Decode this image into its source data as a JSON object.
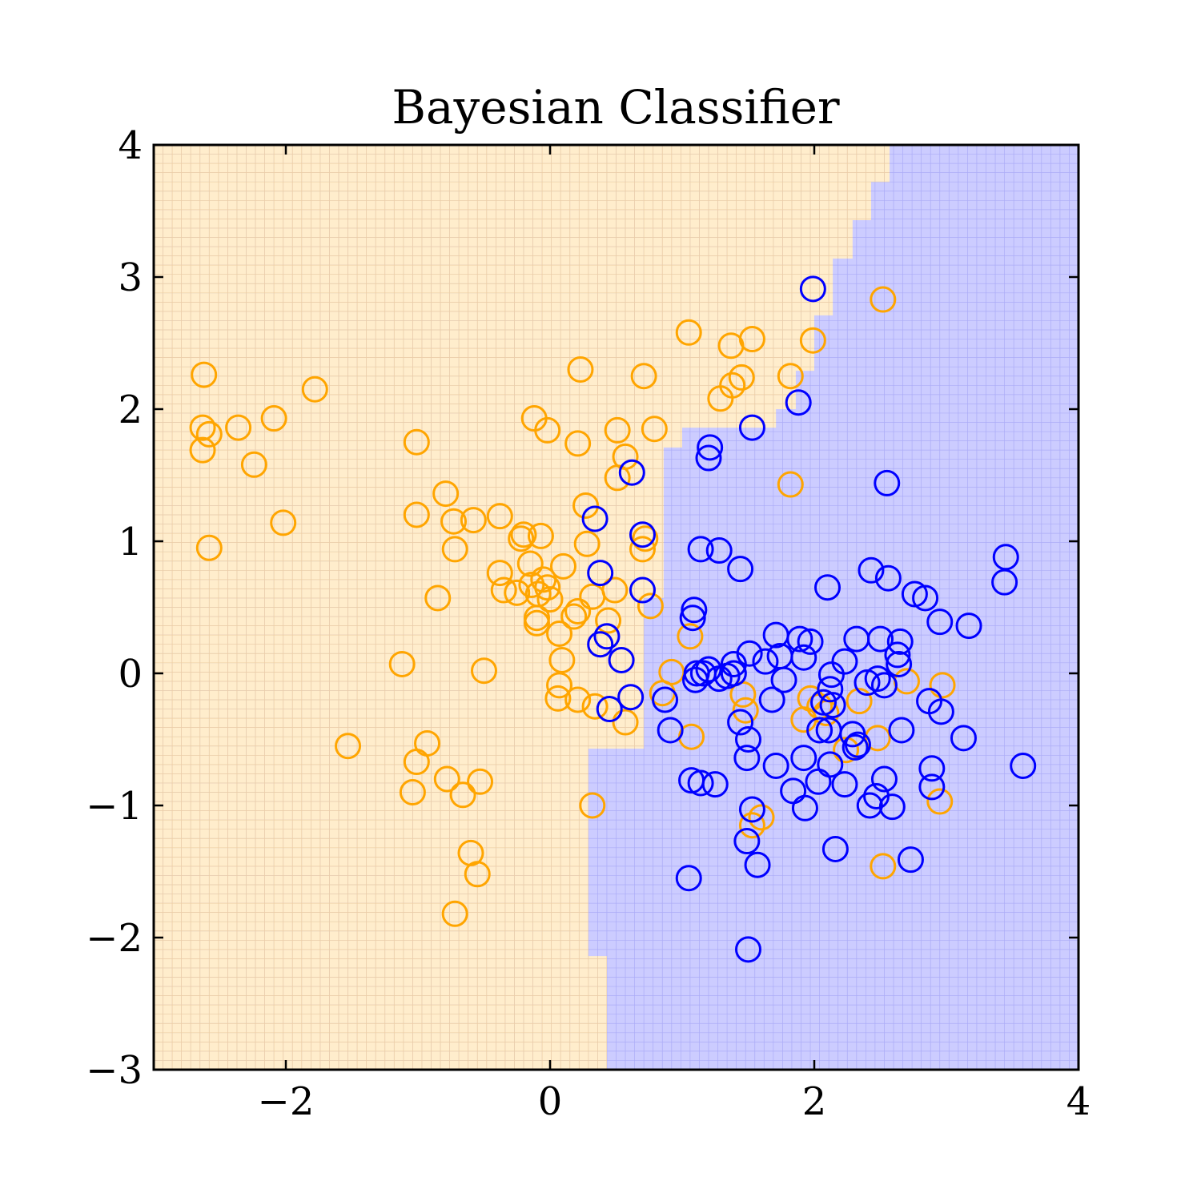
{
  "chart_data": {
    "type": "scatter",
    "title": "Bayesian Classifier",
    "xlabel": "",
    "ylabel": "",
    "xlim": [
      -3,
      4
    ],
    "ylim": [
      -3,
      4
    ],
    "xticks": [
      -2,
      0,
      2,
      4
    ],
    "yticks": [
      -3,
      -2,
      -1,
      0,
      1,
      2,
      3,
      4
    ],
    "xtick_labels": [
      "−2",
      "0",
      "2",
      "4"
    ],
    "ytick_labels": [
      "−3",
      "−2",
      "−1",
      "0",
      "1",
      "2",
      "3",
      "4"
    ],
    "grid": false,
    "legend": "none",
    "marker": "open-circle",
    "colors": {
      "class_orange": "#FFA500",
      "class_blue": "#0000FF",
      "region_orange": "#FFEDCC",
      "region_blue": "#CCCCFF",
      "region_grid_orange": "#FFD68A",
      "region_grid_blue": "#8C8CF0"
    },
    "decision_boundary": [
      [
        2.57,
        4.0
      ],
      [
        2.57,
        3.72
      ],
      [
        2.43,
        3.72
      ],
      [
        2.43,
        3.43
      ],
      [
        2.29,
        3.43
      ],
      [
        2.29,
        3.14
      ],
      [
        2.14,
        3.14
      ],
      [
        2.14,
        2.71
      ],
      [
        2.0,
        2.71
      ],
      [
        2.0,
        2.29
      ],
      [
        1.86,
        2.29
      ],
      [
        1.86,
        2.0
      ],
      [
        1.71,
        2.0
      ],
      [
        1.71,
        1.86
      ],
      [
        1.0,
        1.86
      ],
      [
        1.0,
        1.71
      ],
      [
        0.86,
        1.71
      ],
      [
        0.86,
        0.57
      ],
      [
        0.71,
        0.57
      ],
      [
        0.71,
        -0.57
      ],
      [
        0.29,
        -0.57
      ],
      [
        0.29,
        -2.14
      ],
      [
        0.43,
        -2.14
      ],
      [
        0.43,
        -3.0
      ]
    ],
    "series": [
      {
        "points": [
          [
            -2.62,
            2.26
          ],
          [
            -2.63,
            1.86
          ],
          [
            -2.58,
            1.81
          ],
          [
            -2.63,
            1.69
          ],
          [
            -2.36,
            1.86
          ],
          [
            -2.09,
            1.93
          ],
          [
            -1.78,
            2.15
          ],
          [
            -2.24,
            1.58
          ],
          [
            -2.02,
            1.14
          ],
          [
            -2.58,
            0.95
          ],
          [
            -1.01,
            1.75
          ],
          [
            -1.01,
            1.2
          ],
          [
            -0.79,
            1.36
          ],
          [
            -0.73,
            1.15
          ],
          [
            -0.58,
            1.16
          ],
          [
            -0.72,
            0.94
          ],
          [
            -0.38,
            1.19
          ],
          [
            -0.22,
            1.02
          ],
          [
            -0.2,
            1.05
          ],
          [
            -0.07,
            1.04
          ],
          [
            -0.12,
            1.93
          ],
          [
            -0.02,
            1.84
          ],
          [
            0.23,
            2.3
          ],
          [
            0.71,
            2.25
          ],
          [
            1.05,
            2.58
          ],
          [
            1.37,
            2.48
          ],
          [
            1.53,
            2.53
          ],
          [
            1.45,
            2.24
          ],
          [
            1.38,
            2.18
          ],
          [
            1.29,
            2.08
          ],
          [
            1.82,
            2.25
          ],
          [
            1.99,
            2.52
          ],
          [
            2.52,
            2.83
          ],
          [
            0.21,
            1.74
          ],
          [
            0.51,
            1.84
          ],
          [
            0.79,
            1.85
          ],
          [
            0.57,
            1.64
          ],
          [
            0.51,
            1.48
          ],
          [
            0.27,
            1.27
          ],
          [
            0.72,
            1.02
          ],
          [
            0.28,
            0.98
          ],
          [
            0.7,
            0.94
          ],
          [
            0.1,
            0.81
          ],
          [
            -0.15,
            0.83
          ],
          [
            -0.38,
            0.76
          ],
          [
            -0.05,
            0.71
          ],
          [
            -0.14,
            0.67
          ],
          [
            -0.02,
            0.65
          ],
          [
            -0.25,
            0.61
          ],
          [
            -0.35,
            0.63
          ],
          [
            -0.09,
            0.6
          ],
          [
            0.0,
            0.56
          ],
          [
            0.32,
            0.58
          ],
          [
            0.49,
            0.63
          ],
          [
            0.76,
            0.51
          ],
          [
            -0.85,
            0.57
          ],
          [
            0.21,
            0.47
          ],
          [
            0.18,
            0.43
          ],
          [
            -0.1,
            0.42
          ],
          [
            -0.1,
            0.38
          ],
          [
            0.44,
            0.4
          ],
          [
            0.07,
            0.3
          ],
          [
            1.06,
            0.28
          ],
          [
            0.09,
            0.1
          ],
          [
            -1.12,
            0.07
          ],
          [
            -0.5,
            0.02
          ],
          [
            0.92,
            0.01
          ],
          [
            0.07,
            -0.09
          ],
          [
            0.85,
            -0.15
          ],
          [
            0.06,
            -0.19
          ],
          [
            0.21,
            -0.2
          ],
          [
            0.34,
            -0.25
          ],
          [
            0.57,
            -0.37
          ],
          [
            1.46,
            -0.16
          ],
          [
            1.48,
            -0.28
          ],
          [
            1.97,
            -0.19
          ],
          [
            2.04,
            -0.25
          ],
          [
            2.09,
            -0.3
          ],
          [
            1.92,
            -0.35
          ],
          [
            2.34,
            -0.21
          ],
          [
            2.7,
            -0.06
          ],
          [
            2.97,
            -0.09
          ],
          [
            2.48,
            -0.49
          ],
          [
            2.24,
            -0.58
          ],
          [
            1.07,
            -0.48
          ],
          [
            -1.53,
            -0.55
          ],
          [
            -0.93,
            -0.53
          ],
          [
            -1.01,
            -0.67
          ],
          [
            -1.04,
            -0.9
          ],
          [
            -0.78,
            -0.8
          ],
          [
            -0.66,
            -0.92
          ],
          [
            -0.53,
            -0.82
          ],
          [
            0.32,
            -1.0
          ],
          [
            2.95,
            -0.97
          ],
          [
            1.6,
            -1.09
          ],
          [
            1.53,
            -1.15
          ],
          [
            2.52,
            -1.46
          ],
          [
            -0.6,
            -1.36
          ],
          [
            -0.55,
            -1.52
          ],
          [
            -0.72,
            -1.82
          ],
          [
            1.82,
            1.43
          ]
        ]
      },
      {
        "points": [
          [
            1.99,
            2.91
          ],
          [
            1.88,
            2.05
          ],
          [
            1.53,
            1.86
          ],
          [
            1.21,
            1.71
          ],
          [
            1.2,
            1.63
          ],
          [
            0.62,
            1.52
          ],
          [
            2.55,
            1.44
          ],
          [
            0.34,
            1.17
          ],
          [
            0.7,
            1.05
          ],
          [
            1.14,
            0.94
          ],
          [
            1.28,
            0.93
          ],
          [
            1.44,
            0.79
          ],
          [
            0.38,
            0.76
          ],
          [
            0.7,
            0.63
          ],
          [
            3.45,
            0.88
          ],
          [
            3.44,
            0.69
          ],
          [
            2.1,
            0.65
          ],
          [
            2.43,
            0.78
          ],
          [
            2.56,
            0.72
          ],
          [
            2.76,
            0.6
          ],
          [
            2.84,
            0.57
          ],
          [
            2.95,
            0.39
          ],
          [
            3.17,
            0.36
          ],
          [
            1.09,
            0.48
          ],
          [
            1.08,
            0.42
          ],
          [
            0.43,
            0.28
          ],
          [
            0.38,
            0.22
          ],
          [
            0.54,
            0.1
          ],
          [
            1.71,
            0.29
          ],
          [
            1.89,
            0.26
          ],
          [
            1.97,
            0.24
          ],
          [
            1.92,
            0.12
          ],
          [
            2.32,
            0.26
          ],
          [
            2.5,
            0.26
          ],
          [
            2.65,
            0.24
          ],
          [
            2.63,
            0.14
          ],
          [
            2.64,
            0.07
          ],
          [
            1.51,
            0.15
          ],
          [
            1.63,
            0.09
          ],
          [
            1.74,
            0.13
          ],
          [
            1.39,
            0.07
          ],
          [
            1.11,
            0.0
          ],
          [
            1.16,
            0.0
          ],
          [
            1.2,
            0.03
          ],
          [
            1.1,
            -0.05
          ],
          [
            1.28,
            -0.04
          ],
          [
            1.34,
            -0.02
          ],
          [
            1.39,
            0.0
          ],
          [
            1.77,
            -0.05
          ],
          [
            2.13,
            -0.01
          ],
          [
            2.23,
            0.09
          ],
          [
            2.4,
            -0.07
          ],
          [
            2.48,
            -0.04
          ],
          [
            2.53,
            -0.09
          ],
          [
            2.12,
            -0.12
          ],
          [
            2.07,
            -0.22
          ],
          [
            2.14,
            -0.24
          ],
          [
            0.61,
            -0.18
          ],
          [
            0.87,
            -0.2
          ],
          [
            0.45,
            -0.27
          ],
          [
            1.68,
            -0.2
          ],
          [
            2.87,
            -0.21
          ],
          [
            2.96,
            -0.29
          ],
          [
            0.91,
            -0.43
          ],
          [
            1.44,
            -0.37
          ],
          [
            1.5,
            -0.5
          ],
          [
            1.49,
            -0.64
          ],
          [
            2.04,
            -0.43
          ],
          [
            2.11,
            -0.43
          ],
          [
            2.29,
            -0.46
          ],
          [
            2.31,
            -0.56
          ],
          [
            2.33,
            -0.54
          ],
          [
            2.66,
            -0.43
          ],
          [
            3.13,
            -0.49
          ],
          [
            1.71,
            -0.7
          ],
          [
            1.92,
            -0.64
          ],
          [
            2.12,
            -0.69
          ],
          [
            2.03,
            -0.82
          ],
          [
            2.23,
            -0.84
          ],
          [
            1.84,
            -0.89
          ],
          [
            1.07,
            -0.81
          ],
          [
            1.14,
            -0.83
          ],
          [
            1.25,
            -0.84
          ],
          [
            2.53,
            -0.8
          ],
          [
            2.89,
            -0.72
          ],
          [
            2.89,
            -0.86
          ],
          [
            3.58,
            -0.7
          ],
          [
            1.93,
            -1.02
          ],
          [
            2.42,
            -1.0
          ],
          [
            2.47,
            -0.93
          ],
          [
            2.59,
            -1.01
          ],
          [
            1.53,
            -1.03
          ],
          [
            1.49,
            -1.27
          ],
          [
            1.57,
            -1.45
          ],
          [
            2.16,
            -1.33
          ],
          [
            2.73,
            -1.41
          ],
          [
            1.05,
            -1.55
          ],
          [
            1.5,
            -2.09
          ]
        ]
      }
    ]
  }
}
